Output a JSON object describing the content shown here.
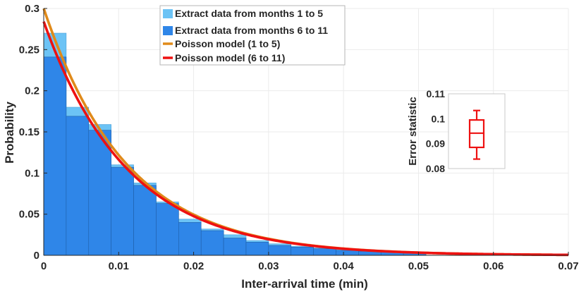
{
  "chart_data": {
    "type": "bar",
    "xlabel": "Inter-arrival time (min)",
    "ylabel": "Probability",
    "xlim": [
      0,
      0.07
    ],
    "ylim": [
      0,
      0.3
    ],
    "grid": true,
    "legend_position": "top-center",
    "x_ticks": [
      "0",
      "0.01",
      "0.02",
      "0.03",
      "0.04",
      "0.05",
      "0.06",
      "0.07"
    ],
    "y_ticks": [
      "0",
      "0.05",
      "0.1",
      "0.15",
      "0.2",
      "0.25",
      "0.3"
    ],
    "bin_width": 0.003,
    "bin_starts": [
      0,
      0.003,
      0.006,
      0.009,
      0.012,
      0.015,
      0.018,
      0.021,
      0.024,
      0.027,
      0.03,
      0.033,
      0.036,
      0.039,
      0.042,
      0.045,
      0.048
    ],
    "series": [
      {
        "name": "Extract data from months 1 to 5",
        "kind": "histogram",
        "color": "#6cc3f5",
        "values": [
          0.27,
          0.18,
          0.159,
          0.11,
          0.088,
          0.065,
          0.044,
          0.032,
          0.025,
          0.018,
          0.014,
          0.011,
          0.009,
          0.007,
          0.005,
          0.004,
          0.003
        ]
      },
      {
        "name": "Extract data from months 6 to 11",
        "kind": "histogram",
        "color": "#2f86e8",
        "values": [
          0.241,
          0.169,
          0.152,
          0.107,
          0.085,
          0.063,
          0.04,
          0.03,
          0.021,
          0.016,
          0.012,
          0.01,
          0.008,
          0.006,
          0.005,
          0.004,
          0.003
        ]
      },
      {
        "name": "Poisson model (1 to 5)",
        "kind": "line",
        "color": "#e08a1a",
        "formula": "y0*exp(-x/tau)",
        "y0": 0.3,
        "tau": 0.0111
      },
      {
        "name": "Poisson model (6 to 11)",
        "kind": "line",
        "color": "#ee1111",
        "formula": "y0*exp(-x/tau)",
        "y0": 0.284,
        "tau": 0.0112
      }
    ],
    "inset": {
      "type": "box",
      "ylabel": "Error statistic",
      "ylim": [
        0.08,
        0.11
      ],
      "y_ticks": [
        "0.08",
        "0.09",
        "0.1",
        "0.11"
      ],
      "whisker_low": 0.0838,
      "q1": 0.0885,
      "median": 0.0942,
      "q3": 0.0995,
      "whisker_high": 0.1033,
      "color": "#ee1111"
    }
  }
}
